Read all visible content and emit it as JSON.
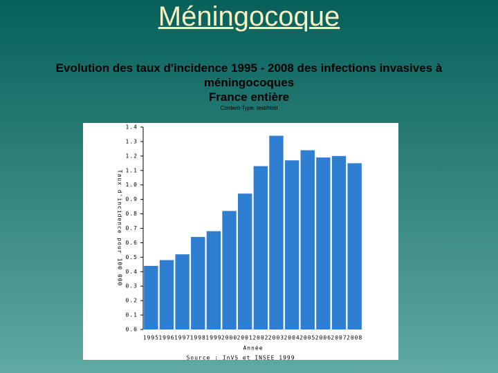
{
  "header": {
    "title": "Méningocoque",
    "subtitle_lines": [
      "Evolution des taux d'incidence 1995 - 2008 des infections invasives à",
      "méningocoques",
      "France entière"
    ],
    "note": "Content-Type: text/html"
  },
  "chart_data": {
    "type": "bar",
    "categories": [
      "1995",
      "1996",
      "1997",
      "1998",
      "1999",
      "2000",
      "2001",
      "2002",
      "2003",
      "2004",
      "2005",
      "2006",
      "2007",
      "2008"
    ],
    "values": [
      0.44,
      0.48,
      0.52,
      0.64,
      0.68,
      0.82,
      0.94,
      1.13,
      1.34,
      1.17,
      1.24,
      1.19,
      1.2,
      1.15
    ],
    "color": "#2e7fd2",
    "ylim": [
      0,
      1.4
    ],
    "yticks": [
      {
        "value": 0,
        "label": "0.0"
      },
      0.1,
      0.2,
      0.3,
      0.4,
      0.5,
      0.6,
      0.7,
      0.8,
      0.9,
      {
        "value": 1,
        "label": "1.0"
      },
      1.1,
      1.2,
      1.3,
      1.4
    ],
    "y_label": "Taux d'incidence pour 100 000",
    "x_label": "Année",
    "source": "Source : InVS et INSEE 1999"
  }
}
